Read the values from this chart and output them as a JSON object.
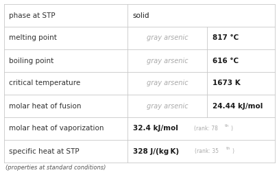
{
  "rows": [
    {
      "label": "phase at STP",
      "col2": "",
      "col3": "solid",
      "has_subcol": false,
      "has_rank": false
    },
    {
      "label": "melting point",
      "col2": "gray arsenic",
      "col3": "817 °C",
      "has_subcol": true,
      "has_rank": false
    },
    {
      "label": "boiling point",
      "col2": "gray arsenic",
      "col3": "616 °C",
      "has_subcol": true,
      "has_rank": false
    },
    {
      "label": "critical temperature",
      "col2": "gray arsenic",
      "col3": "1673 K",
      "has_subcol": true,
      "has_rank": false
    },
    {
      "label": "molar heat of fusion",
      "col2": "gray arsenic",
      "col3": "24.44 kJ/mol",
      "has_subcol": true,
      "has_rank": false
    },
    {
      "label": "molar heat of vaporization",
      "col2": "32.4 kJ/mol",
      "col2_rank": "(rank: 78",
      "col2_rank_sup": "th",
      "col2_rank_end": ")",
      "col3": "",
      "has_subcol": false,
      "has_rank": true
    },
    {
      "label": "specific heat at STP",
      "col2": "328 J/(kg K)",
      "col2_rank": "(rank: 35",
      "col2_rank_sup": "th",
      "col2_rank_end": ")",
      "col3": "",
      "has_subcol": false,
      "has_rank": true
    }
  ],
  "footer": "(properties at standard conditions)",
  "bg_color": "#ffffff",
  "border_color": "#c8c8c8",
  "label_color": "#303030",
  "subcol_color": "#aaaaaa",
  "value_color": "#1a1a1a",
  "footer_color": "#555555",
  "label_fontsize": 7.5,
  "value_fontsize": 7.5,
  "subcol_fontsize": 7.0,
  "rank_fontsize": 5.5,
  "rank_sup_fontsize": 4.5,
  "footer_fontsize": 6.0
}
